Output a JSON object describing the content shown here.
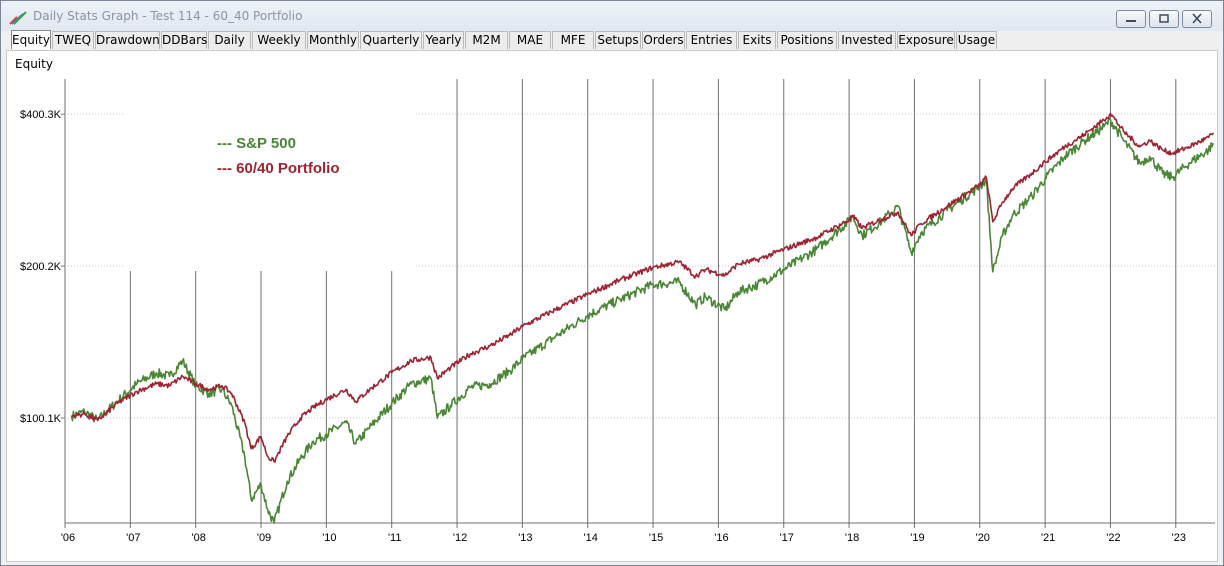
{
  "window": {
    "title": "Daily Stats Graph - Test 114 - 60_40 Portfolio"
  },
  "tabs": [
    "Equity",
    "TWEQ",
    "Drawdown",
    "DDBars",
    "Daily",
    "Weekly",
    "Monthly",
    "Quarterly",
    "Yearly",
    "M2M",
    "MAE",
    "MFE",
    "Setups",
    "Orders",
    "Entries",
    "Exits",
    "Positions",
    "Invested",
    "Exposure",
    "Usage"
  ],
  "active_tab": "Equity",
  "colors": {
    "sp500": "#4a8636",
    "portfolio": "#9e2332",
    "gridline": "#707070"
  },
  "chart_data": {
    "type": "line",
    "title": "Equity",
    "x_tick_labels": [
      "'06",
      "'07",
      "'08",
      "'09",
      "'10",
      "'11",
      "'12",
      "'13",
      "'14",
      "'15",
      "'16",
      "'17",
      "'18",
      "'19",
      "'20",
      "'21",
      "'22",
      "'23"
    ],
    "y_tick_labels": [
      "$100.1K",
      "$200.2K",
      "$400.3K"
    ],
    "y_ticks": [
      100100,
      200200,
      400300
    ],
    "y_scale": "log",
    "ylim": [
      62000,
      470000
    ],
    "xlim": [
      2006.0,
      2023.6
    ],
    "legend": {
      "placement": "top-left",
      "entries": [
        "--- S&P 500",
        "--- 60/40 Portfolio"
      ]
    },
    "series": [
      {
        "name": "S&P 500",
        "x": [
          2006.1,
          2006.3,
          2006.5,
          2006.8,
          2007.1,
          2007.4,
          2007.6,
          2007.8,
          2008.0,
          2008.2,
          2008.4,
          2008.55,
          2008.75,
          2008.85,
          2009.0,
          2009.1,
          2009.2,
          2009.4,
          2009.6,
          2009.8,
          2010.0,
          2010.3,
          2010.45,
          2010.7,
          2011.0,
          2011.3,
          2011.6,
          2011.7,
          2011.9,
          2012.2,
          2012.5,
          2012.8,
          2013.0,
          2013.5,
          2014.0,
          2014.5,
          2015.0,
          2015.4,
          2015.65,
          2015.8,
          2016.1,
          2016.3,
          2016.6,
          2017.0,
          2017.5,
          2018.0,
          2018.05,
          2018.2,
          2018.5,
          2018.75,
          2018.95,
          2019.1,
          2019.5,
          2020.0,
          2020.1,
          2020.2,
          2020.35,
          2020.5,
          2020.8,
          2021.0,
          2021.3,
          2021.6,
          2021.9,
          2022.0,
          2022.2,
          2022.45,
          2022.6,
          2022.8,
          2022.95,
          2023.2,
          2023.5,
          2023.58
        ],
        "values": [
          101000,
          103000,
          99000,
          108000,
          117000,
          123000,
          121000,
          130000,
          116000,
          112000,
          114000,
          106000,
          84000,
          69000,
          74000,
          66000,
          62000,
          75000,
          83000,
          90000,
          93000,
          98000,
          89000,
          97000,
          107000,
          117000,
          120000,
          100000,
          106000,
          115000,
          117000,
          124000,
          131000,
          145000,
          160000,
          172000,
          184000,
          186000,
          168000,
          174000,
          164000,
          178000,
          184000,
          197000,
          216000,
          246000,
          252000,
          230000,
          246000,
          263000,
          213000,
          233000,
          258000,
          288000,
          297000,
          195000,
          230000,
          252000,
          276000,
          298000,
          330000,
          355000,
          378000,
          390000,
          355000,
          320000,
          330000,
          305000,
          300000,
          320000,
          340000,
          350000
        ]
      },
      {
        "name": "60/40 Portfolio",
        "x": [
          2006.1,
          2006.3,
          2006.5,
          2006.8,
          2007.1,
          2007.4,
          2007.6,
          2007.8,
          2008.0,
          2008.2,
          2008.4,
          2008.55,
          2008.75,
          2008.85,
          2009.0,
          2009.1,
          2009.2,
          2009.4,
          2009.6,
          2009.8,
          2010.0,
          2010.3,
          2010.45,
          2010.7,
          2011.0,
          2011.3,
          2011.6,
          2011.7,
          2011.9,
          2012.2,
          2012.5,
          2012.8,
          2013.0,
          2013.5,
          2014.0,
          2014.5,
          2015.0,
          2015.4,
          2015.65,
          2015.8,
          2016.1,
          2016.3,
          2016.6,
          2017.0,
          2017.5,
          2018.0,
          2018.05,
          2018.2,
          2018.5,
          2018.75,
          2018.95,
          2019.1,
          2019.5,
          2020.0,
          2020.1,
          2020.2,
          2020.35,
          2020.5,
          2020.8,
          2021.0,
          2021.3,
          2021.6,
          2021.9,
          2022.0,
          2022.2,
          2022.45,
          2022.6,
          2022.8,
          2022.95,
          2023.2,
          2023.5,
          2023.58
        ],
        "values": [
          101000,
          102000,
          99000,
          107000,
          113000,
          117000,
          116000,
          121000,
          117000,
          114000,
          116000,
          112000,
          98000,
          87000,
          92000,
          84000,
          82000,
          92000,
          100000,
          105000,
          109000,
          114000,
          108000,
          115000,
          123000,
          130000,
          132000,
          120000,
          126000,
          134000,
          139000,
          146000,
          152000,
          164000,
          176000,
          188000,
          199000,
          204000,
          191000,
          197000,
          192000,
          202000,
          206000,
          216000,
          228000,
          247000,
          252000,
          238000,
          248000,
          256000,
          230000,
          243000,
          263000,
          290000,
          300000,
          245000,
          268000,
          285000,
          306000,
          322000,
          345000,
          365000,
          390000,
          402000,
          370000,
          345000,
          355000,
          340000,
          335000,
          345000,
          360000,
          367000
        ]
      }
    ]
  }
}
